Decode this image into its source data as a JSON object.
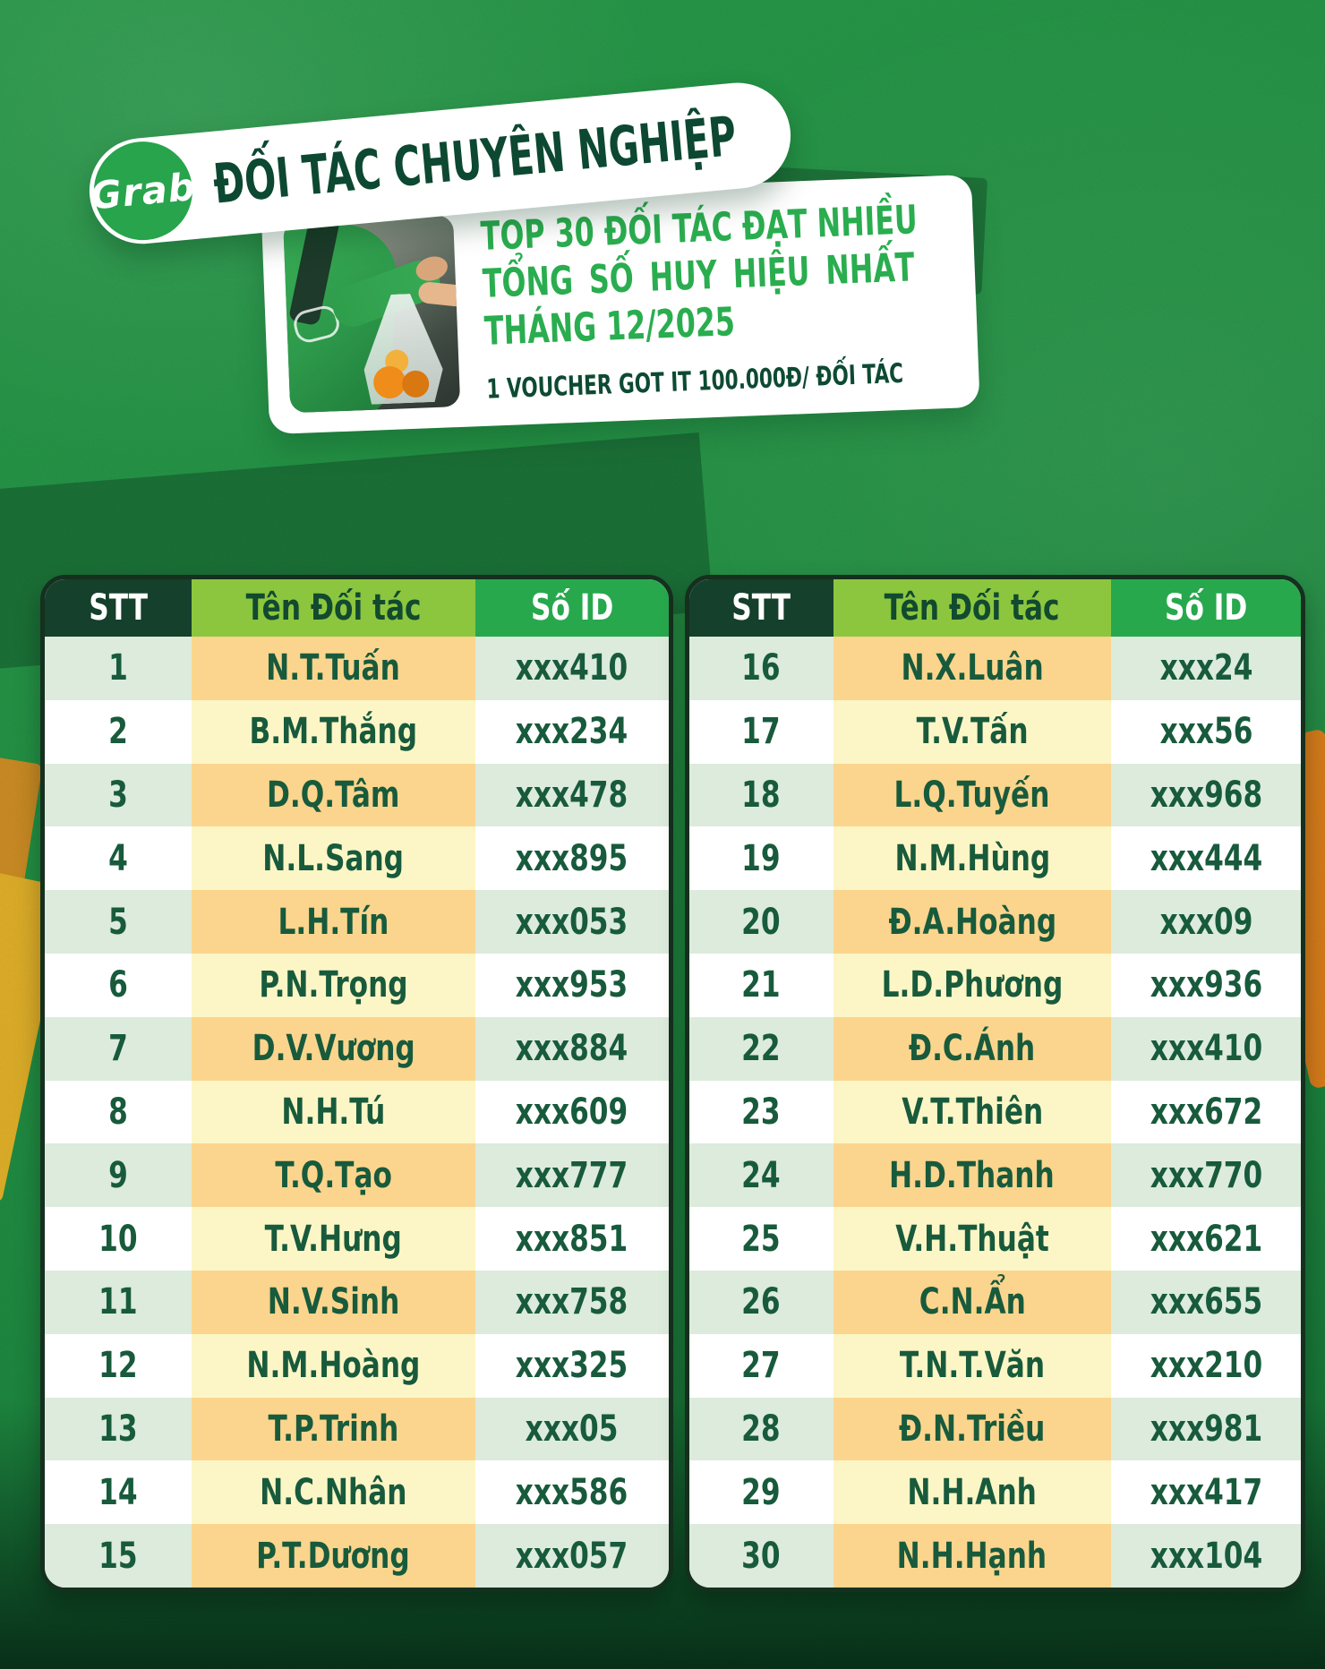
{
  "brand": {
    "logo_text": "Grab"
  },
  "header": {
    "title": "ĐỐI TÁC CHUYÊN NGHIỆP"
  },
  "promo": {
    "line1": "TOP 30 ĐỐI TÁC ĐẠT NHIỀU",
    "line2": "TỔNG SỐ HUY HIỆU NHẤT",
    "line3": "THÁNG 12/2025",
    "voucher": "1 VOUCHER GOT IT 100.000Đ/ ĐỐI TÁC"
  },
  "table": {
    "headers": {
      "stt": "STT",
      "name": "Tên Đối tác",
      "id": "Số ID"
    },
    "left_rows": [
      {
        "stt": "1",
        "name": "N.T.Tuấn",
        "id": "xxx410"
      },
      {
        "stt": "2",
        "name": "B.M.Thắng",
        "id": "xxx234"
      },
      {
        "stt": "3",
        "name": "D.Q.Tâm",
        "id": "xxx478"
      },
      {
        "stt": "4",
        "name": "N.L.Sang",
        "id": "xxx895"
      },
      {
        "stt": "5",
        "name": "L.H.Tín",
        "id": "xxx053"
      },
      {
        "stt": "6",
        "name": "P.N.Trọng",
        "id": "xxx953"
      },
      {
        "stt": "7",
        "name": "D.V.Vương",
        "id": "xxx884"
      },
      {
        "stt": "8",
        "name": "N.H.Tú",
        "id": "xxx609"
      },
      {
        "stt": "9",
        "name": "T.Q.Tạo",
        "id": "xxx777"
      },
      {
        "stt": "10",
        "name": "T.V.Hưng",
        "id": "xxx851"
      },
      {
        "stt": "11",
        "name": "N.V.Sinh",
        "id": "xxx758"
      },
      {
        "stt": "12",
        "name": "N.M.Hoàng",
        "id": "xxx325"
      },
      {
        "stt": "13",
        "name": "T.P.Trinh",
        "id": "xxx05"
      },
      {
        "stt": "14",
        "name": "N.C.Nhân",
        "id": "xxx586"
      },
      {
        "stt": "15",
        "name": "P.T.Dương",
        "id": "xxx057"
      }
    ],
    "right_rows": [
      {
        "stt": "16",
        "name": "N.X.Luân",
        "id": "xxx24"
      },
      {
        "stt": "17",
        "name": "T.V.Tấn",
        "id": "xxx56"
      },
      {
        "stt": "18",
        "name": "L.Q.Tuyến",
        "id": "xxx968"
      },
      {
        "stt": "19",
        "name": "N.M.Hùng",
        "id": "xxx444"
      },
      {
        "stt": "20",
        "name": "Đ.A.Hoàng",
        "id": "xxx09"
      },
      {
        "stt": "21",
        "name": "L.D.Phương",
        "id": "xxx936"
      },
      {
        "stt": "22",
        "name": "Đ.C.Ánh",
        "id": "xxx410"
      },
      {
        "stt": "23",
        "name": "V.T.Thiên",
        "id": "xxx672"
      },
      {
        "stt": "24",
        "name": "H.D.Thanh",
        "id": "xxx770"
      },
      {
        "stt": "25",
        "name": "V.H.Thuật",
        "id": "xxx621"
      },
      {
        "stt": "26",
        "name": "C.N.Ẩn",
        "id": "xxx655"
      },
      {
        "stt": "27",
        "name": "T.N.T.Văn",
        "id": "xxx210"
      },
      {
        "stt": "28",
        "name": "Đ.N.Triều",
        "id": "xxx981"
      },
      {
        "stt": "29",
        "name": "N.H.Anh",
        "id": "xxx417"
      },
      {
        "stt": "30",
        "name": "N.H.Hạnh",
        "id": "xxx104"
      }
    ]
  },
  "colors": {
    "grab_green": "#27a84d",
    "background_green": "#249a49",
    "dark_green_text": "#0d4832",
    "header_dark": "#15402b",
    "header_lime": "#8cc63e",
    "row_pale_green": "#dcebdc",
    "row_orange": "#fbd58d",
    "row_pale_yellow": "#fcf6c6",
    "accent_yellow": "#f5c02d",
    "accent_orange": "#ef8b1e"
  }
}
